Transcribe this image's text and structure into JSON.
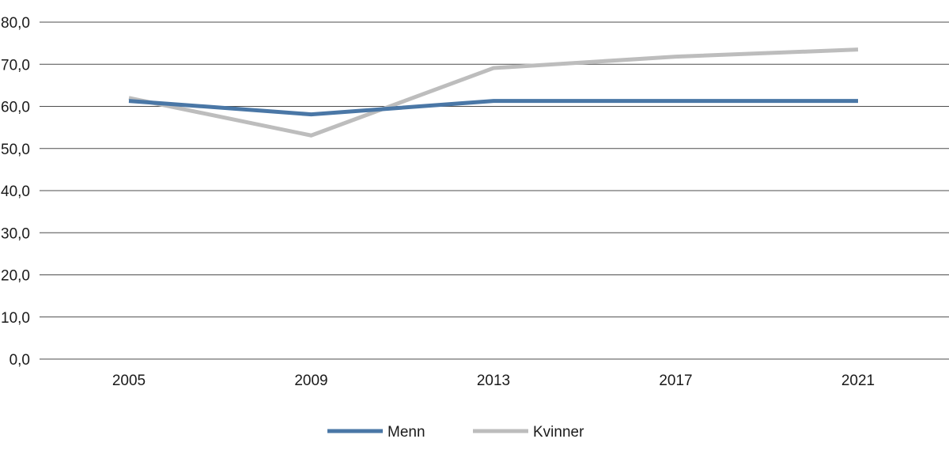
{
  "chart_data": {
    "type": "line",
    "title": "",
    "xlabel": "",
    "ylabel": "",
    "categories": [
      "2005",
      "2009",
      "2013",
      "2017",
      "2021"
    ],
    "ylim": [
      0,
      80
    ],
    "yticks": [
      "0,0",
      "10,0",
      "20,0",
      "30,0",
      "40,0",
      "50,0",
      "60,0",
      "70,0",
      "80,0"
    ],
    "grid": true,
    "legend_position": "bottom-center",
    "series": [
      {
        "name": "Menn",
        "color": "#4a77a6",
        "values": [
          61.3,
          58.1,
          61.3,
          61.3,
          61.3
        ]
      },
      {
        "name": "Kvinner",
        "color": "#bdbdbd",
        "values": [
          62.0,
          53.1,
          69.1,
          71.8,
          73.5
        ]
      }
    ]
  }
}
